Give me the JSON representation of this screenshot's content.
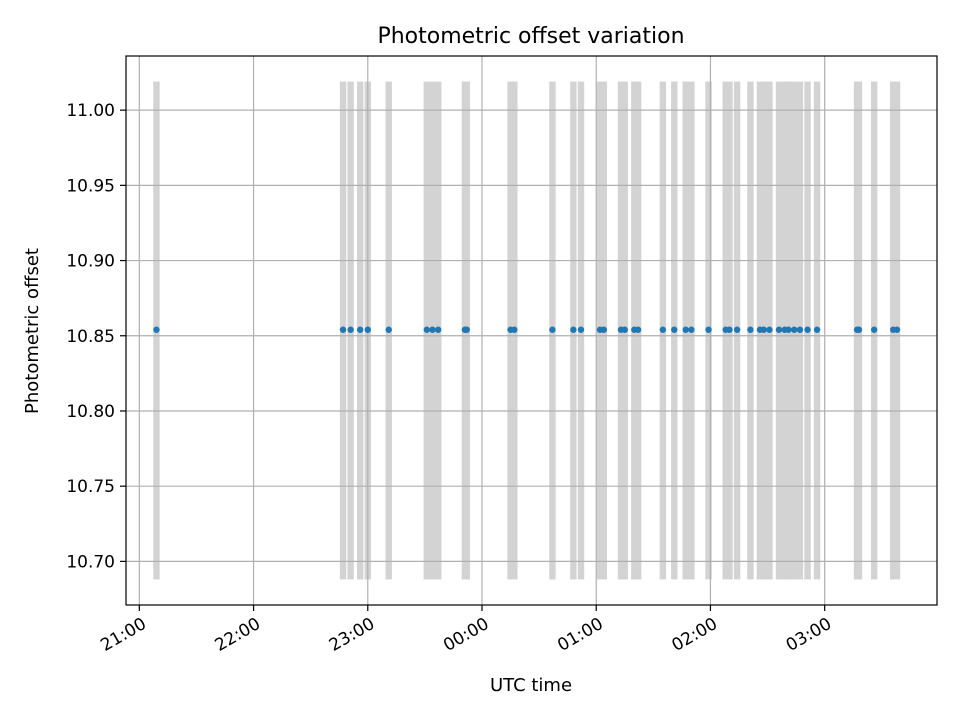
{
  "chart_data": {
    "type": "scatter",
    "title": "Photometric offset variation",
    "xlabel": "UTC time",
    "ylabel": "Photometric offset",
    "x_tick_labels": [
      "21:00",
      "22:00",
      "23:00",
      "00:00",
      "01:00",
      "02:00",
      "03:00"
    ],
    "y_tick_labels": [
      "10.70",
      "10.75",
      "10.80",
      "10.85",
      "10.90",
      "10.95",
      "11.00"
    ],
    "x_unit": "UTC time (HH:MM, 21:00 to 03:38 across midnight)",
    "xlim": [
      "20:53",
      "03:59"
    ],
    "ylim": [
      10.671,
      11.036
    ],
    "grid": true,
    "point_color": "#1f77b4",
    "band_color": "#d3d3d3",
    "band_range": [
      10.688,
      11.019
    ],
    "y_value": 10.854,
    "x": [
      "21:09",
      "22:47",
      "22:51",
      "22:56",
      "23:00",
      "23:11",
      "23:31",
      "23:34",
      "23:37",
      "23:51",
      "23:52",
      "00:15",
      "00:17",
      "00:37",
      "00:48",
      "00:52",
      "01:02",
      "01:04",
      "01:13",
      "01:15",
      "01:20",
      "01:22",
      "01:35",
      "01:41",
      "01:47",
      "01:50",
      "01:59",
      "02:08",
      "02:10",
      "02:14",
      "02:21",
      "02:26",
      "02:28",
      "02:31",
      "02:36",
      "02:39",
      "02:41",
      "02:44",
      "02:47",
      "02:51",
      "02:56",
      "03:17",
      "03:18",
      "03:26",
      "03:36",
      "03:38"
    ]
  }
}
